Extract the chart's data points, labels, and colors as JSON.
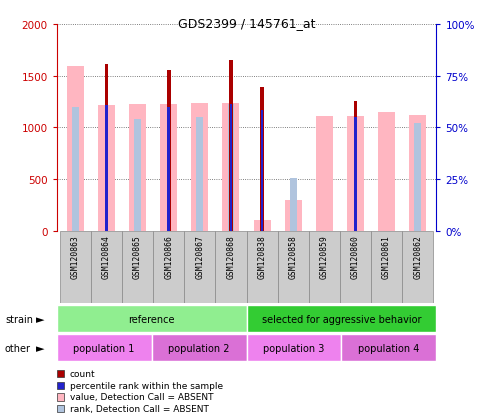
{
  "title": "GDS2399 / 145761_at",
  "samples": [
    "GSM120863",
    "GSM120864",
    "GSM120865",
    "GSM120866",
    "GSM120867",
    "GSM120868",
    "GSM120838",
    "GSM120858",
    "GSM120859",
    "GSM120860",
    "GSM120861",
    "GSM120862"
  ],
  "count_values": [
    0,
    1610,
    0,
    1550,
    0,
    1650,
    1390,
    0,
    0,
    1250,
    0,
    0
  ],
  "value_absent": [
    1590,
    1220,
    1230,
    1230,
    1240,
    1240,
    100,
    300,
    1110,
    1110,
    1150,
    1120
  ],
  "rank_absent": [
    1200,
    0,
    1080,
    0,
    1100,
    1230,
    0,
    510,
    0,
    0,
    0,
    1040
  ],
  "percentile_rank": [
    0,
    1220,
    0,
    1200,
    0,
    1230,
    1170,
    0,
    0,
    1100,
    0,
    0
  ],
  "strain_groups": [
    {
      "label": "reference",
      "start": 0,
      "end": 6,
      "color": "#90EE90"
    },
    {
      "label": "selected for aggressive behavior",
      "start": 6,
      "end": 12,
      "color": "#33CC33"
    }
  ],
  "other_groups": [
    {
      "label": "population 1",
      "start": 0,
      "end": 3,
      "color": "#EE82EE"
    },
    {
      "label": "population 2",
      "start": 3,
      "end": 6,
      "color": "#DA70D6"
    },
    {
      "label": "population 3",
      "start": 6,
      "end": 9,
      "color": "#EE82EE"
    },
    {
      "label": "population 4",
      "start": 9,
      "end": 12,
      "color": "#DA70D6"
    }
  ],
  "ylim_left": [
    0,
    2000
  ],
  "ylim_right": [
    0,
    100
  ],
  "yticks_left": [
    0,
    500,
    1000,
    1500,
    2000
  ],
  "yticks_right": [
    0,
    25,
    50,
    75,
    100
  ],
  "color_count": "#AA0000",
  "color_percentile": "#2222CC",
  "color_value_absent": "#FFB6C1",
  "color_rank_absent": "#B0C4DE",
  "legend_items": [
    {
      "label": "count",
      "color": "#AA0000"
    },
    {
      "label": "percentile rank within the sample",
      "color": "#2222CC"
    },
    {
      "label": "value, Detection Call = ABSENT",
      "color": "#FFB6C1"
    },
    {
      "label": "rank, Detection Call = ABSENT",
      "color": "#B0C4DE"
    }
  ],
  "fig_width": 4.93,
  "fig_height": 4.14
}
